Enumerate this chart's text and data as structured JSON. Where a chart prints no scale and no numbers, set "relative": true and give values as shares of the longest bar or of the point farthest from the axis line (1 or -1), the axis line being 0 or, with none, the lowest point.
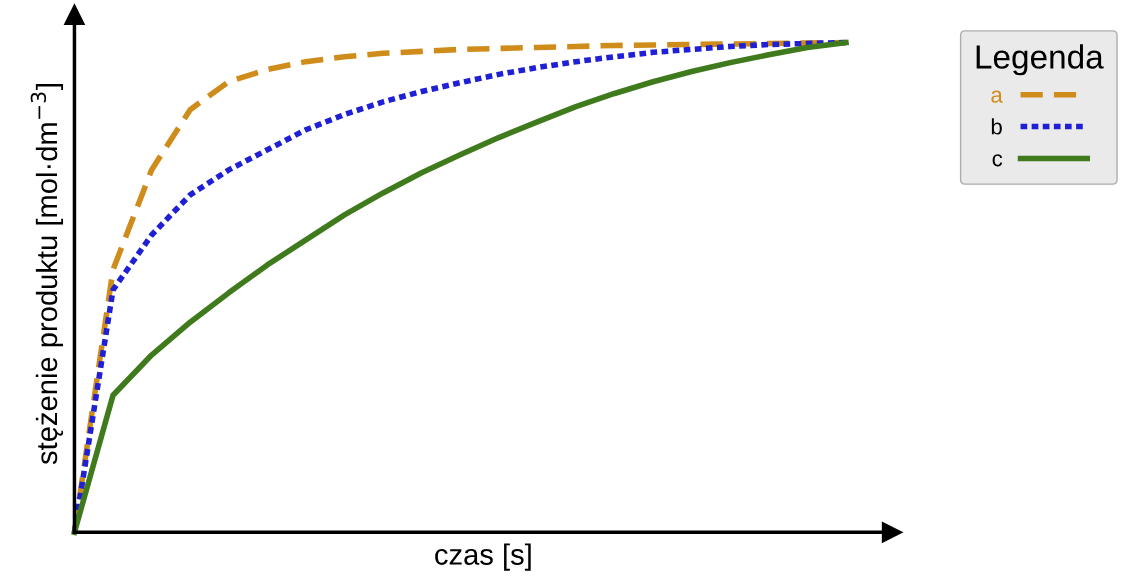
{
  "chart_data": {
    "type": "line",
    "relative": true,
    "xlabel": "czas [s]",
    "ylabel": "stężenie produktu [mol·dm$^{−3}$]",
    "legend_title": "Legenda",
    "legend": "top right",
    "categories": [
      null,
      null,
      null,
      null,
      null,
      null,
      null,
      null,
      null,
      null,
      null,
      null,
      null,
      null,
      null,
      null,
      null,
      null,
      null,
      null,
      null
    ],
    "series": [
      {
        "name": "a",
        "color": "#d08c1a",
        "line_style": "dashed",
        "values": [
          0,
          0.536,
          0.74,
          0.863,
          0.92,
          0.945,
          0.961,
          0.971,
          0.978,
          0.982,
          0.986,
          0.988,
          0.99,
          0.992,
          0.994,
          0.995,
          0.996,
          0.997,
          0.998,
          0.999,
          1
        ]
      },
      {
        "name": "b",
        "color": "#1f1fd6",
        "line_style": "dotted",
        "values": [
          0,
          0.495,
          0.607,
          0.689,
          0.74,
          0.781,
          0.822,
          0.853,
          0.879,
          0.9,
          0.918,
          0.935,
          0.949,
          0.961,
          0.971,
          0.98,
          0.986,
          0.992,
          0.996,
          0.998,
          1
        ]
      },
      {
        "name": "c",
        "color": "#3f7a1c",
        "line_style": "solid",
        "values": [
          0,
          0.28,
          0.362,
          0.429,
          0.489,
          0.546,
          0.597,
          0.648,
          0.693,
          0.734,
          0.771,
          0.806,
          0.838,
          0.869,
          0.896,
          0.92,
          0.941,
          0.959,
          0.975,
          0.99,
          1
        ]
      }
    ]
  }
}
